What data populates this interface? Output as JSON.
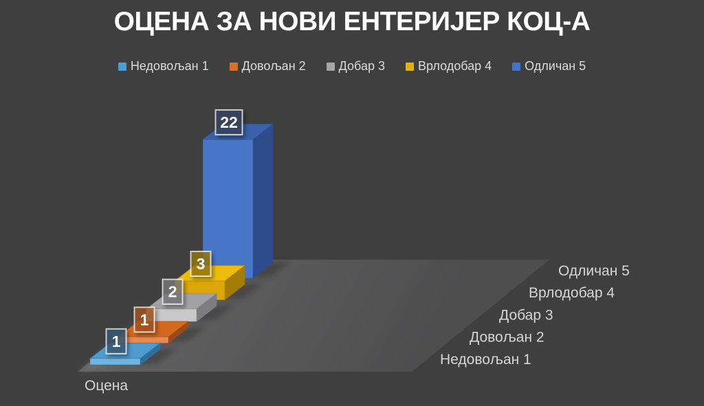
{
  "colors": {
    "background": "#3F3F40",
    "floor_top": "#5E5E5F",
    "floor_bottom": "#4E4E4F",
    "title_text": "#FFFFFF",
    "axis_text": "#D6D6D6",
    "legend_text": "#DCDCDC",
    "data_label_text": "#FFFFFF",
    "data_label_border": "rgba(255,255,255,0.72)"
  },
  "title": "ОЦЕНА ЗА НОВИ ЕНТЕРИЈЕР КОЦ-А",
  "legend": {
    "position": "top",
    "items": [
      {
        "label": "Недовољан 1",
        "swatch": "#4A9CD3"
      },
      {
        "label": "Довољан 2",
        "swatch": "#D96F28"
      },
      {
        "label": "Добар 3",
        "swatch": "#A6A6A6"
      },
      {
        "label": "Врлодобар 4",
        "swatch": "#E3B206"
      },
      {
        "label": "Одличан 5",
        "swatch": "#4472C4"
      }
    ]
  },
  "chart_data": {
    "type": "bar",
    "projection": "3d",
    "title": "ОЦЕНА ЗА НОВИ ЕНТЕРИЈЕР КОЦ-А",
    "xlabel": "Оцена",
    "ylabel": "",
    "grid": false,
    "value_axis_visible": false,
    "legend_position": "top",
    "categories": [
      "Недовољан 1",
      "Довољан 2",
      "Добар 3",
      "Врлодобар 4",
      "Одличан 5"
    ],
    "values": [
      1,
      1,
      2,
      3,
      22
    ],
    "data_labels": [
      "1",
      "1",
      "2",
      "3",
      "22"
    ],
    "series": [
      {
        "name": "Оцена",
        "values": [
          1,
          1,
          2,
          3,
          22
        ]
      }
    ],
    "point_colors": [
      {
        "category": "Недовољан 1",
        "legend": "#4A9CD3",
        "front": "#6FB5E0",
        "top": "#4E9BCE",
        "side": "#2F6F9C",
        "label_fill": "rgba(58,88,116,0.78)"
      },
      {
        "category": "Довољан 2",
        "legend": "#D96F28",
        "front": "#E58A50",
        "top": "#D2691F",
        "side": "#9C4A1A",
        "label_fill": "rgba(166,84,30,0.78)"
      },
      {
        "category": "Добар 3",
        "legend": "#A6A6A6",
        "front": "#C9C9C9",
        "top": "#A2A2A4",
        "side": "#7D7D7F",
        "label_fill": "rgba(120,120,122,0.78)"
      },
      {
        "category": "Врлодобар 4",
        "legend": "#E3B206",
        "front": "#DCA70A",
        "top": "#EDBC0C",
        "side": "#A37D05",
        "label_fill": "rgba(150,120,14,0.78)"
      },
      {
        "category": "Одличан 5",
        "legend": "#4472C4",
        "front": "#4876C8",
        "top": "#3A62AC",
        "side": "#2E4C8C",
        "label_fill": "rgba(56,70,96,0.88)"
      }
    ]
  }
}
